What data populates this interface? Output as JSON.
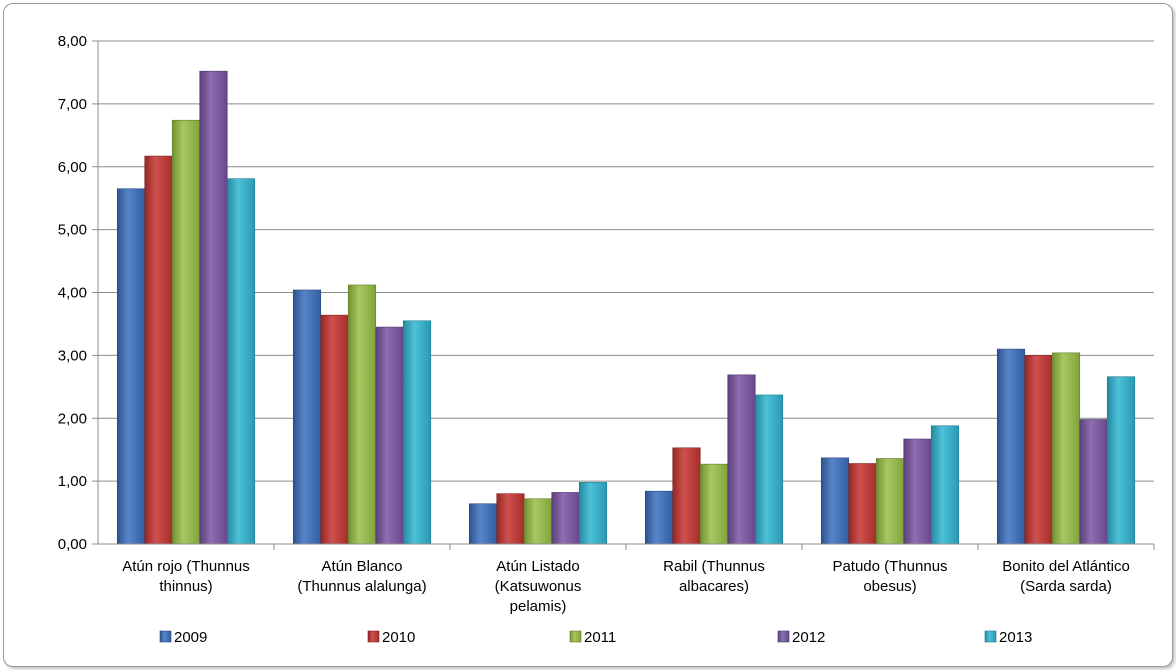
{
  "chart_data": {
    "type": "bar",
    "title": "",
    "xlabel": "",
    "ylabel": "",
    "ylim": [
      0,
      8
    ],
    "y_ticks": [
      "0,00",
      "1,00",
      "2,00",
      "3,00",
      "4,00",
      "5,00",
      "6,00",
      "7,00",
      "8,00"
    ],
    "grid": true,
    "legend_position": "bottom",
    "categories": [
      [
        "Atún rojo (Thunnus",
        "thinnus)"
      ],
      [
        "Atún Blanco",
        "(Thunnus alalunga)"
      ],
      [
        "Atún Listado",
        "(Katsuwonus",
        "pelamis)"
      ],
      [
        "Rabil (Thunnus",
        "albacares)"
      ],
      [
        "Patudo (Thunnus",
        "obesus)"
      ],
      [
        "Bonito del Atlántico",
        "(Sarda sarda)"
      ]
    ],
    "series": [
      {
        "name": "2009",
        "color": "#3a6fc0",
        "values": [
          5.65,
          4.04,
          0.64,
          0.84,
          1.37,
          3.1
        ]
      },
      {
        "name": "2010",
        "color": "#c63330",
        "values": [
          6.17,
          3.64,
          0.8,
          1.53,
          1.28,
          3.0
        ]
      },
      {
        "name": "2011",
        "color": "#98c044",
        "values": [
          6.74,
          4.12,
          0.72,
          1.27,
          1.36,
          3.04
        ]
      },
      {
        "name": "2012",
        "color": "#7a55a4",
        "values": [
          7.52,
          3.45,
          0.82,
          2.69,
          1.67,
          1.98
        ]
      },
      {
        "name": "2013",
        "color": "#2fb6d4",
        "values": [
          5.81,
          3.55,
          0.98,
          2.37,
          1.88,
          2.66
        ]
      }
    ]
  }
}
